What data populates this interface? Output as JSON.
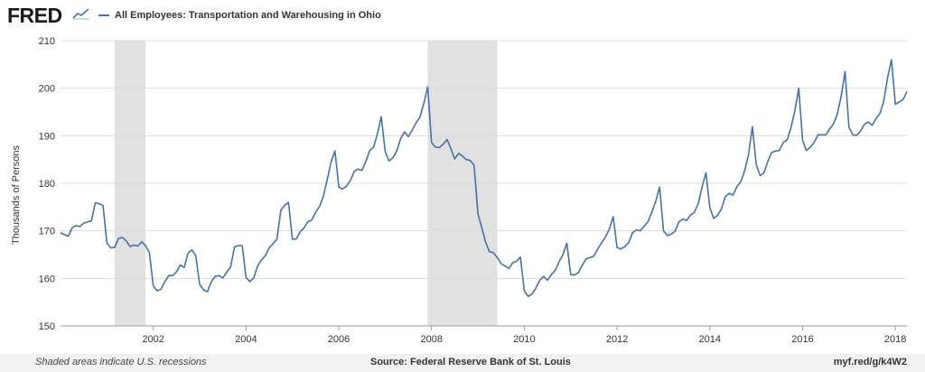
{
  "header": {
    "logo_text": "FRED",
    "legend_label": "All Employees: Transportation and Warehousing in Ohio",
    "series_color": "#4572a7"
  },
  "footer": {
    "recession_note": "Shaded areas indicate U.S. recessions",
    "source": "Source: Federal Reserve Bank of St. Louis",
    "link": "myf.red/g/k4W2"
  },
  "chart_data": {
    "type": "line",
    "title": "",
    "xlabel": "",
    "ylabel": "Thousands of Persons",
    "ylim": [
      150,
      210
    ],
    "xlim": [
      "2000-01",
      "2018-04"
    ],
    "yticks": [
      150,
      160,
      170,
      180,
      190,
      200,
      210
    ],
    "xticks": [
      "2002",
      "2004",
      "2006",
      "2008",
      "2010",
      "2012",
      "2014",
      "2016",
      "2018"
    ],
    "grid": true,
    "recessions": [
      [
        "2001-03",
        "2001-11"
      ],
      [
        "2007-12",
        "2009-06"
      ]
    ],
    "series": [
      {
        "name": "All Employees: Transportation and Warehousing in Ohio",
        "color": "#4572a7",
        "points": [
          [
            "2000-01",
            169.6
          ],
          [
            "2000-02",
            169.2
          ],
          [
            "2000-03",
            168.9
          ],
          [
            "2000-04",
            170.6
          ],
          [
            "2000-05",
            171.1
          ],
          [
            "2000-06",
            170.9
          ],
          [
            "2000-07",
            171.6
          ],
          [
            "2000-08",
            171.9
          ],
          [
            "2000-09",
            172.1
          ],
          [
            "2000-10",
            175.9
          ],
          [
            "2000-11",
            175.7
          ],
          [
            "2000-12",
            175.3
          ],
          [
            "2001-01",
            167.5
          ],
          [
            "2001-02",
            166.4
          ],
          [
            "2001-03",
            166.5
          ],
          [
            "2001-04",
            168.4
          ],
          [
            "2001-05",
            168.6
          ],
          [
            "2001-06",
            167.9
          ],
          [
            "2001-07",
            166.7
          ],
          [
            "2001-08",
            167.0
          ],
          [
            "2001-09",
            166.8
          ],
          [
            "2001-10",
            167.7
          ],
          [
            "2001-11",
            166.9
          ],
          [
            "2001-12",
            165.4
          ],
          [
            "2002-01",
            158.4
          ],
          [
            "2002-02",
            157.4
          ],
          [
            "2002-03",
            157.7
          ],
          [
            "2002-04",
            159.3
          ],
          [
            "2002-05",
            160.6
          ],
          [
            "2002-06",
            160.6
          ],
          [
            "2002-07",
            161.4
          ],
          [
            "2002-08",
            162.8
          ],
          [
            "2002-09",
            162.3
          ],
          [
            "2002-10",
            165.3
          ],
          [
            "2002-11",
            166.0
          ],
          [
            "2002-12",
            164.8
          ],
          [
            "2003-01",
            158.8
          ],
          [
            "2003-02",
            157.6
          ],
          [
            "2003-03",
            157.2
          ],
          [
            "2003-04",
            159.3
          ],
          [
            "2003-05",
            160.4
          ],
          [
            "2003-06",
            160.6
          ],
          [
            "2003-07",
            160.1
          ],
          [
            "2003-08",
            161.3
          ],
          [
            "2003-09",
            162.4
          ],
          [
            "2003-10",
            166.6
          ],
          [
            "2003-11",
            166.9
          ],
          [
            "2003-12",
            166.9
          ],
          [
            "2004-01",
            160.2
          ],
          [
            "2004-02",
            159.3
          ],
          [
            "2004-03",
            160.1
          ],
          [
            "2004-04",
            162.6
          ],
          [
            "2004-05",
            163.9
          ],
          [
            "2004-06",
            164.8
          ],
          [
            "2004-07",
            166.4
          ],
          [
            "2004-08",
            167.3
          ],
          [
            "2004-09",
            168.3
          ],
          [
            "2004-10",
            174.3
          ],
          [
            "2004-11",
            175.4
          ],
          [
            "2004-12",
            176.0
          ],
          [
            "2005-01",
            168.2
          ],
          [
            "2005-02",
            168.3
          ],
          [
            "2005-03",
            169.8
          ],
          [
            "2005-04",
            170.6
          ],
          [
            "2005-05",
            171.9
          ],
          [
            "2005-06",
            172.3
          ],
          [
            "2005-07",
            173.9
          ],
          [
            "2005-08",
            175.1
          ],
          [
            "2005-09",
            177.2
          ],
          [
            "2005-10",
            180.7
          ],
          [
            "2005-11",
            184.5
          ],
          [
            "2005-12",
            186.8
          ],
          [
            "2006-01",
            179.2
          ],
          [
            "2006-02",
            178.8
          ],
          [
            "2006-03",
            179.4
          ],
          [
            "2006-04",
            180.6
          ],
          [
            "2006-05",
            182.5
          ],
          [
            "2006-06",
            183.0
          ],
          [
            "2006-07",
            182.7
          ],
          [
            "2006-08",
            184.6
          ],
          [
            "2006-09",
            186.9
          ],
          [
            "2006-10",
            187.6
          ],
          [
            "2006-11",
            190.4
          ],
          [
            "2006-12",
            194.0
          ],
          [
            "2007-01",
            186.7
          ],
          [
            "2007-02",
            184.7
          ],
          [
            "2007-03",
            185.4
          ],
          [
            "2007-04",
            186.8
          ],
          [
            "2007-05",
            189.4
          ],
          [
            "2007-06",
            190.8
          ],
          [
            "2007-07",
            189.8
          ],
          [
            "2007-08",
            191.2
          ],
          [
            "2007-09",
            192.7
          ],
          [
            "2007-10",
            193.9
          ],
          [
            "2007-11",
            196.8
          ],
          [
            "2007-12",
            200.3
          ],
          [
            "2008-01",
            188.6
          ],
          [
            "2008-02",
            187.6
          ],
          [
            "2008-03",
            187.5
          ],
          [
            "2008-04",
            188.2
          ],
          [
            "2008-05",
            189.2
          ],
          [
            "2008-06",
            187.3
          ],
          [
            "2008-07",
            185.1
          ],
          [
            "2008-08",
            186.3
          ],
          [
            "2008-09",
            185.7
          ],
          [
            "2008-10",
            185.0
          ],
          [
            "2008-11",
            184.8
          ],
          [
            "2008-12",
            183.8
          ],
          [
            "2009-01",
            173.6
          ],
          [
            "2009-02",
            170.6
          ],
          [
            "2009-03",
            167.6
          ],
          [
            "2009-04",
            165.6
          ],
          [
            "2009-05",
            165.4
          ],
          [
            "2009-06",
            164.4
          ],
          [
            "2009-07",
            163.1
          ],
          [
            "2009-08",
            162.6
          ],
          [
            "2009-09",
            162.1
          ],
          [
            "2009-10",
            163.3
          ],
          [
            "2009-11",
            163.6
          ],
          [
            "2009-12",
            164.5
          ],
          [
            "2010-01",
            157.4
          ],
          [
            "2010-02",
            156.2
          ],
          [
            "2010-03",
            156.7
          ],
          [
            "2010-04",
            158.0
          ],
          [
            "2010-05",
            159.6
          ],
          [
            "2010-06",
            160.4
          ],
          [
            "2010-07",
            159.6
          ],
          [
            "2010-08",
            160.8
          ],
          [
            "2010-09",
            161.7
          ],
          [
            "2010-10",
            163.5
          ],
          [
            "2010-11",
            165.0
          ],
          [
            "2010-12",
            167.4
          ],
          [
            "2011-01",
            160.8
          ],
          [
            "2011-02",
            160.7
          ],
          [
            "2011-03",
            161.2
          ],
          [
            "2011-04",
            162.8
          ],
          [
            "2011-05",
            164.1
          ],
          [
            "2011-06",
            164.4
          ],
          [
            "2011-07",
            164.7
          ],
          [
            "2011-08",
            166.2
          ],
          [
            "2011-09",
            167.5
          ],
          [
            "2011-10",
            168.7
          ],
          [
            "2011-11",
            170.4
          ],
          [
            "2011-12",
            173.0
          ],
          [
            "2012-01",
            166.5
          ],
          [
            "2012-02",
            166.2
          ],
          [
            "2012-03",
            166.7
          ],
          [
            "2012-04",
            167.5
          ],
          [
            "2012-05",
            169.6
          ],
          [
            "2012-06",
            170.2
          ],
          [
            "2012-07",
            170.0
          ],
          [
            "2012-08",
            171.0
          ],
          [
            "2012-09",
            171.9
          ],
          [
            "2012-10",
            173.9
          ],
          [
            "2012-11",
            176.2
          ],
          [
            "2012-12",
            179.2
          ],
          [
            "2013-01",
            170.0
          ],
          [
            "2013-02",
            169.0
          ],
          [
            "2013-03",
            169.3
          ],
          [
            "2013-04",
            169.9
          ],
          [
            "2013-05",
            171.9
          ],
          [
            "2013-06",
            172.5
          ],
          [
            "2013-07",
            172.2
          ],
          [
            "2013-08",
            173.3
          ],
          [
            "2013-09",
            173.9
          ],
          [
            "2013-10",
            175.7
          ],
          [
            "2013-11",
            179.2
          ],
          [
            "2013-12",
            182.2
          ],
          [
            "2014-01",
            174.9
          ],
          [
            "2014-02",
            172.6
          ],
          [
            "2014-03",
            173.3
          ],
          [
            "2014-04",
            174.6
          ],
          [
            "2014-05",
            177.2
          ],
          [
            "2014-06",
            177.9
          ],
          [
            "2014-07",
            177.5
          ],
          [
            "2014-08",
            179.3
          ],
          [
            "2014-09",
            180.3
          ],
          [
            "2014-10",
            182.6
          ],
          [
            "2014-11",
            186.0
          ],
          [
            "2014-12",
            191.9
          ],
          [
            "2015-01",
            184.1
          ],
          [
            "2015-02",
            181.6
          ],
          [
            "2015-03",
            182.2
          ],
          [
            "2015-04",
            184.6
          ],
          [
            "2015-05",
            186.5
          ],
          [
            "2015-06",
            186.8
          ],
          [
            "2015-07",
            186.9
          ],
          [
            "2015-08",
            188.6
          ],
          [
            "2015-09",
            189.1
          ],
          [
            "2015-10",
            191.7
          ],
          [
            "2015-11",
            195.2
          ],
          [
            "2015-12",
            200.0
          ],
          [
            "2016-01",
            189.0
          ],
          [
            "2016-02",
            186.9
          ],
          [
            "2016-03",
            187.6
          ],
          [
            "2016-04",
            188.6
          ],
          [
            "2016-05",
            190.2
          ],
          [
            "2016-06",
            190.2
          ],
          [
            "2016-07",
            190.2
          ],
          [
            "2016-08",
            191.4
          ],
          [
            "2016-09",
            192.5
          ],
          [
            "2016-10",
            194.6
          ],
          [
            "2016-11",
            198.4
          ],
          [
            "2016-12",
            203.5
          ],
          [
            "2017-01",
            191.8
          ],
          [
            "2017-02",
            190.2
          ],
          [
            "2017-03",
            190.1
          ],
          [
            "2017-04",
            191.0
          ],
          [
            "2017-05",
            192.4
          ],
          [
            "2017-06",
            192.9
          ],
          [
            "2017-07",
            192.2
          ],
          [
            "2017-08",
            193.6
          ],
          [
            "2017-09",
            194.7
          ],
          [
            "2017-10",
            197.2
          ],
          [
            "2017-11",
            202.2
          ],
          [
            "2017-12",
            206.0
          ],
          [
            "2018-01",
            196.6
          ],
          [
            "2018-02",
            197.1
          ],
          [
            "2018-03",
            197.6
          ],
          [
            "2018-04",
            199.3
          ]
        ]
      }
    ]
  }
}
